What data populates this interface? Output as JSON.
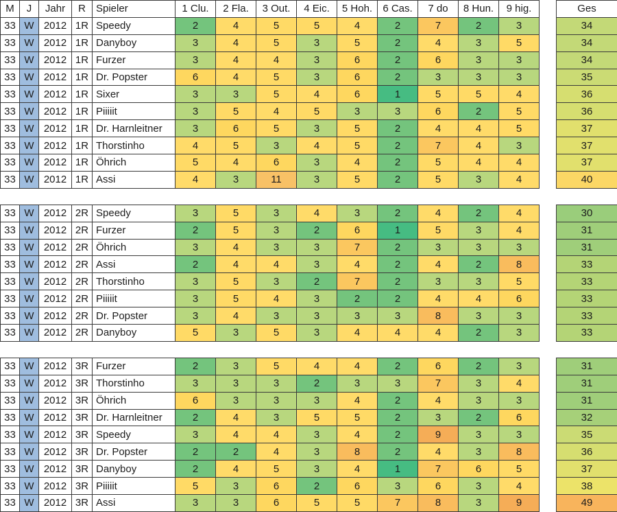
{
  "sheet": {
    "columns": {
      "m": "M",
      "j": "J",
      "year": "Jahr",
      "round": "R",
      "player": "Spieler",
      "holes": [
        "1 Clu.",
        "2 Fla.",
        "3 Out.",
        "4 Eic.",
        "5 Hoh.",
        "6 Cas.",
        "7 do",
        "8 Hun.",
        "9 hig."
      ],
      "total": "Ges"
    },
    "tables": [
      {
        "m": "33",
        "j": "W",
        "year": "2012",
        "round": "1R",
        "rows": [
          {
            "player": "Speedy",
            "holes": [
              2,
              4,
              5,
              5,
              4,
              2,
              7,
              2,
              3
            ],
            "total": 34
          },
          {
            "player": "Danyboy",
            "holes": [
              3,
              4,
              5,
              3,
              5,
              2,
              4,
              3,
              5
            ],
            "total": 34
          },
          {
            "player": "Furzer",
            "holes": [
              3,
              4,
              4,
              3,
              6,
              2,
              6,
              3,
              3
            ],
            "total": 34
          },
          {
            "player": "Dr. Popster",
            "holes": [
              6,
              4,
              5,
              3,
              6,
              2,
              3,
              3,
              3
            ],
            "total": 35
          },
          {
            "player": "Sixer",
            "holes": [
              3,
              3,
              5,
              4,
              6,
              1,
              5,
              5,
              4
            ],
            "total": 36
          },
          {
            "player": "Piiiiit",
            "holes": [
              3,
              5,
              4,
              5,
              3,
              3,
              6,
              2,
              5
            ],
            "total": 36
          },
          {
            "player": "Dr. Harnleitner",
            "holes": [
              3,
              6,
              5,
              3,
              5,
              2,
              4,
              4,
              5
            ],
            "total": 37
          },
          {
            "player": "Thorstinho",
            "holes": [
              4,
              5,
              3,
              4,
              5,
              2,
              7,
              4,
              3
            ],
            "total": 37
          },
          {
            "player": "Öhrich",
            "holes": [
              5,
              4,
              6,
              3,
              4,
              2,
              5,
              4,
              4
            ],
            "total": 37
          },
          {
            "player": "Assi",
            "holes": [
              4,
              3,
              11,
              3,
              5,
              2,
              5,
              3,
              4
            ],
            "total": 40
          }
        ]
      },
      {
        "m": "33",
        "j": "W",
        "year": "2012",
        "round": "2R",
        "rows": [
          {
            "player": "Speedy",
            "holes": [
              3,
              5,
              3,
              4,
              3,
              2,
              4,
              2,
              4
            ],
            "total": 30
          },
          {
            "player": "Furzer",
            "holes": [
              2,
              5,
              3,
              2,
              6,
              1,
              5,
              3,
              4
            ],
            "total": 31
          },
          {
            "player": "Öhrich",
            "holes": [
              3,
              4,
              3,
              3,
              7,
              2,
              3,
              3,
              3
            ],
            "total": 31
          },
          {
            "player": "Assi",
            "holes": [
              2,
              4,
              4,
              3,
              4,
              2,
              4,
              2,
              8
            ],
            "total": 33
          },
          {
            "player": "Thorstinho",
            "holes": [
              3,
              5,
              3,
              2,
              7,
              2,
              3,
              3,
              5
            ],
            "total": 33
          },
          {
            "player": "Piiiiit",
            "holes": [
              3,
              5,
              4,
              3,
              2,
              2,
              4,
              4,
              6
            ],
            "total": 33
          },
          {
            "player": "Dr. Popster",
            "holes": [
              3,
              4,
              3,
              3,
              3,
              3,
              8,
              3,
              3
            ],
            "total": 33
          },
          {
            "player": "Danyboy",
            "holes": [
              5,
              3,
              5,
              3,
              4,
              4,
              4,
              2,
              3
            ],
            "total": 33
          }
        ]
      },
      {
        "m": "33",
        "j": "W",
        "year": "2012",
        "round": "3R",
        "rows": [
          {
            "player": "Furzer",
            "holes": [
              2,
              3,
              5,
              4,
              4,
              2,
              6,
              2,
              3
            ],
            "total": 31
          },
          {
            "player": "Thorstinho",
            "holes": [
              3,
              3,
              3,
              2,
              3,
              3,
              7,
              3,
              4
            ],
            "total": 31
          },
          {
            "player": "Öhrich",
            "holes": [
              6,
              3,
              3,
              3,
              4,
              2,
              4,
              3,
              3
            ],
            "total": 31
          },
          {
            "player": "Dr. Harnleitner",
            "holes": [
              2,
              4,
              3,
              5,
              5,
              2,
              3,
              2,
              6
            ],
            "total": 32
          },
          {
            "player": "Speedy",
            "holes": [
              3,
              4,
              4,
              3,
              4,
              2,
              9,
              3,
              3
            ],
            "total": 35
          },
          {
            "player": "Dr. Popster",
            "holes": [
              2,
              2,
              4,
              3,
              8,
              2,
              4,
              3,
              8
            ],
            "total": 36
          },
          {
            "player": "Danyboy",
            "holes": [
              2,
              4,
              5,
              3,
              4,
              1,
              7,
              6,
              5
            ],
            "total": 37
          },
          {
            "player": "Piiiiit",
            "holes": [
              5,
              3,
              6,
              2,
              6,
              3,
              6,
              3,
              4
            ],
            "total": 38
          },
          {
            "player": "Assi",
            "holes": [
              3,
              3,
              6,
              5,
              5,
              7,
              8,
              3,
              9
            ],
            "total": 49
          }
        ]
      }
    ],
    "colors": {
      "week_cell_bg": "#9FBDDF",
      "border": "#3A3A3A",
      "text": "#1C1C1C",
      "value_scale": {
        "1": "#46BC82",
        "2": "#74C47D",
        "3": "#B8D77E",
        "4": "#FFDB69",
        "5": "#FFDA66",
        "6": "#FED75F",
        "7": "#FBC75F",
        "8": "#F9BC5D",
        "9": "#F5AD57",
        "11": "#F8C166"
      },
      "total_scale": {
        "30": "#9ACD7B",
        "31": "#9FCE7A",
        "32": "#A6D079",
        "33": "#B4D476",
        "34": "#C3D977",
        "35": "#CBDB74",
        "36": "#D6DE70",
        "37": "#E1E06D",
        "38": "#ECE369",
        "40": "#FBD765",
        "49": "#F8B45C"
      }
    }
  }
}
